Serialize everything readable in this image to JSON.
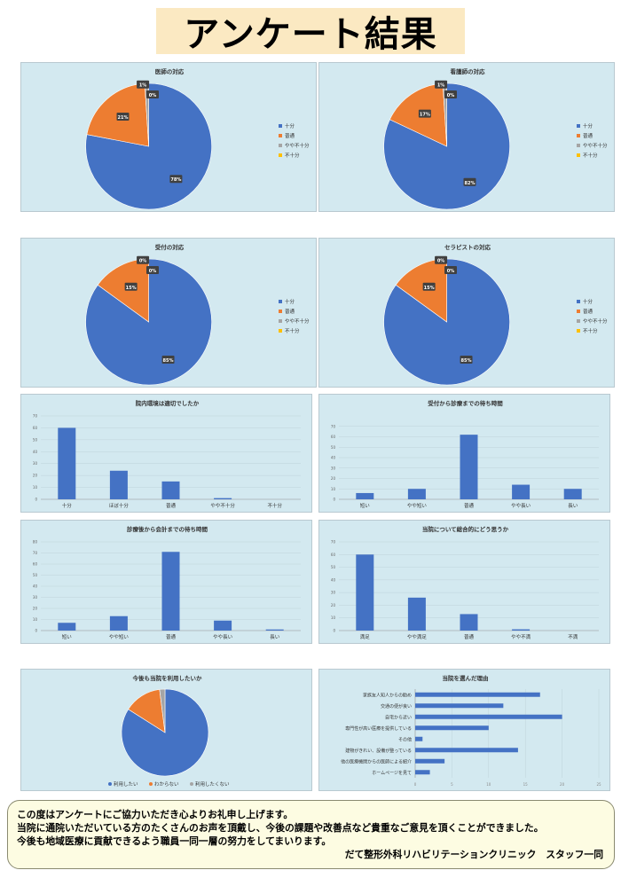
{
  "page": {
    "title": "アンケート結果"
  },
  "charts": {
    "doctor": {
      "title": "医師の対応",
      "legend": [
        "十分",
        "普通",
        "やや不十分",
        "不十分"
      ],
      "slices": [
        {
          "label": "十分",
          "value": 78
        },
        {
          "label": "普通",
          "value": 21
        },
        {
          "label": "やや不十分",
          "value": 1
        },
        {
          "label": "不十分",
          "value": 0
        }
      ],
      "labels": [
        "78%",
        "21%",
        "1%",
        "0%"
      ]
    },
    "nurse": {
      "title": "看護師の対応",
      "legend": [
        "十分",
        "普通",
        "やや不十分",
        "不十分"
      ],
      "slices": [
        {
          "label": "十分",
          "value": 82
        },
        {
          "label": "普通",
          "value": 17
        },
        {
          "label": "やや不十分",
          "value": 1
        },
        {
          "label": "不十分",
          "value": 0
        }
      ],
      "labels": [
        "82%",
        "17%",
        "1%",
        "0%"
      ]
    },
    "reception": {
      "title": "受付の対応",
      "legend": [
        "十分",
        "普通",
        "やや不十分",
        "不十分"
      ],
      "slices": [
        {
          "label": "十分",
          "value": 85
        },
        {
          "label": "普通",
          "value": 15
        },
        {
          "label": "やや不十分",
          "value": 0
        },
        {
          "label": "不十分",
          "value": 0
        }
      ],
      "labels": [
        "85%",
        "15%",
        "0%",
        "0%"
      ]
    },
    "therapist": {
      "title": "セラピストの対応",
      "legend": [
        "十分",
        "普通",
        "やや不十分",
        "不十分"
      ],
      "slices": [
        {
          "label": "十分",
          "value": 85
        },
        {
          "label": "普通",
          "value": 15
        },
        {
          "label": "やや不十分",
          "value": 0
        },
        {
          "label": "不十分",
          "value": 0
        }
      ],
      "labels": [
        "85%",
        "15%",
        "0%",
        "0%"
      ]
    },
    "environment": {
      "title": "院内環境は適切でしたか",
      "categories": [
        "十分",
        "ほぼ十分",
        "普通",
        "やや不十分",
        "不十分"
      ],
      "values": [
        60,
        24,
        15,
        1,
        0
      ],
      "ymax": 70,
      "ticks": [
        "0",
        "10",
        "20",
        "30",
        "40",
        "50",
        "60",
        "70"
      ]
    },
    "waitReception": {
      "title": "受付から診療までの待ち時間",
      "categories": [
        "短い",
        "やや短い",
        "普通",
        "やや長い",
        "長い"
      ],
      "values": [
        6,
        10,
        62,
        14,
        10
      ],
      "ymax": 80,
      "ticks": [
        "0",
        "10",
        "20",
        "30",
        "40",
        "50",
        "60",
        "70"
      ]
    },
    "waitPayment": {
      "title": "診療後から会計までの待ち時間",
      "categories": [
        "短い",
        "やや短い",
        "普通",
        "やや長い",
        "長い"
      ],
      "values": [
        7,
        13,
        71,
        9,
        1
      ],
      "ymax": 80,
      "ticks": [
        "0",
        "10",
        "20",
        "30",
        "40",
        "50",
        "60",
        "70",
        "80"
      ]
    },
    "overall": {
      "title": "当院について総合的にどう思うか",
      "categories": [
        "満足",
        "やや満足",
        "普通",
        "やや不満",
        "不満"
      ],
      "values": [
        60,
        26,
        13,
        1,
        0
      ],
      "ymax": 70,
      "ticks": [
        "0",
        "10",
        "20",
        "30",
        "40",
        "50",
        "60",
        "70"
      ]
    },
    "reuse": {
      "title": "今後も当院を利用したいか",
      "legend": [
        "利用したい",
        "わからない",
        "利用したくない"
      ],
      "slices": [
        {
          "label": "利用したい",
          "value": 84
        },
        {
          "label": "わからない",
          "value": 14
        },
        {
          "label": "利用したくない",
          "value": 2
        }
      ]
    },
    "reasons": {
      "title": "当院を選んだ理由",
      "categories": [
        "家族友人知人からの勧め",
        "交通の便が良い",
        "自宅から近い",
        "専門性が高い医療を提供している",
        "その他",
        "建物がきれい、設備が整っている",
        "他の医療機関からの医師による紹介",
        "ホームページを見て"
      ],
      "values": [
        17,
        12,
        20,
        10,
        1,
        14,
        4,
        2
      ],
      "xmax": 25,
      "ticks": [
        "0",
        "5",
        "10",
        "15",
        "20",
        "25"
      ]
    }
  },
  "colors": {
    "panel": "#d3e9f0",
    "blue": "#4472c4",
    "orange": "#ed7d31",
    "gray": "#a5a5a5",
    "yellow": "#ffc000"
  },
  "chart_data": [
    {
      "type": "pie",
      "title": "医師の対応",
      "categories": [
        "十分",
        "普通",
        "やや不十分",
        "不十分"
      ],
      "values": [
        78,
        21,
        1,
        0
      ]
    },
    {
      "type": "pie",
      "title": "看護師の対応",
      "categories": [
        "十分",
        "普通",
        "やや不十分",
        "不十分"
      ],
      "values": [
        82,
        17,
        1,
        0
      ]
    },
    {
      "type": "pie",
      "title": "受付の対応",
      "categories": [
        "十分",
        "普通",
        "やや不十分",
        "不十分"
      ],
      "values": [
        85,
        15,
        0,
        0
      ]
    },
    {
      "type": "pie",
      "title": "セラピストの対応",
      "categories": [
        "十分",
        "普通",
        "やや不十分",
        "不十分"
      ],
      "values": [
        85,
        15,
        0,
        0
      ]
    },
    {
      "type": "bar",
      "title": "院内環境は適切でしたか",
      "categories": [
        "十分",
        "ほぼ十分",
        "普通",
        "やや不十分",
        "不十分"
      ],
      "values": [
        60,
        24,
        15,
        1,
        0
      ],
      "ylim": [
        0,
        70
      ]
    },
    {
      "type": "bar",
      "title": "受付から診療までの待ち時間",
      "categories": [
        "短い",
        "やや短い",
        "普通",
        "やや長い",
        "長い"
      ],
      "values": [
        6,
        10,
        62,
        14,
        10
      ],
      "ylim": [
        0,
        80
      ]
    },
    {
      "type": "bar",
      "title": "診療後から会計までの待ち時間",
      "categories": [
        "短い",
        "やや短い",
        "普通",
        "やや長い",
        "長い"
      ],
      "values": [
        7,
        13,
        71,
        9,
        1
      ],
      "ylim": [
        0,
        80
      ]
    },
    {
      "type": "bar",
      "title": "当院について総合的にどう思うか",
      "categories": [
        "満足",
        "やや満足",
        "普通",
        "やや不満",
        "不満"
      ],
      "values": [
        60,
        26,
        13,
        1,
        0
      ],
      "ylim": [
        0,
        70
      ]
    },
    {
      "type": "pie",
      "title": "今後も当院を利用したいか",
      "categories": [
        "利用したい",
        "わからない",
        "利用したくない"
      ],
      "values": [
        84,
        14,
        2
      ]
    },
    {
      "type": "bar",
      "title": "当院を選んだ理由",
      "orientation": "horizontal",
      "categories": [
        "家族友人知人からの勧め",
        "交通の便が良い",
        "自宅から近い",
        "専門性が高い医療を提供している",
        "その他",
        "建物がきれい、設備が整っている",
        "他の医療機関からの医師による紹介",
        "ホームページを見て"
      ],
      "values": [
        17,
        12,
        20,
        10,
        1,
        14,
        4,
        2
      ],
      "xlim": [
        0,
        25
      ]
    }
  ],
  "message": {
    "line1": "この度はアンケートにご協力いただき心よりお礼申し上げます。",
    "line2": "当院に通院いただいている方のたくさんのお声を頂戴し、今後の課題や改善点など貴重なご意見を頂くことができました。",
    "line3": "今後も地域医療に貢献できるよう職員一同一層の努力をしてまいります。",
    "signature": "だて整形外科リハビリテーションクリニック　スタッフ一同"
  }
}
